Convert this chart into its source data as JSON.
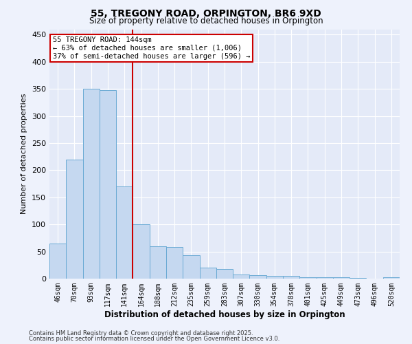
{
  "title_line1": "55, TREGONY ROAD, ORPINGTON, BR6 9XD",
  "title_line2": "Size of property relative to detached houses in Orpington",
  "xlabel": "Distribution of detached houses by size in Orpington",
  "ylabel": "Number of detached properties",
  "categories": [
    "46sqm",
    "70sqm",
    "93sqm",
    "117sqm",
    "141sqm",
    "164sqm",
    "188sqm",
    "212sqm",
    "235sqm",
    "259sqm",
    "283sqm",
    "307sqm",
    "330sqm",
    "354sqm",
    "378sqm",
    "401sqm",
    "425sqm",
    "449sqm",
    "473sqm",
    "496sqm",
    "520sqm"
  ],
  "values": [
    65,
    220,
    350,
    348,
    170,
    100,
    60,
    58,
    43,
    20,
    18,
    8,
    6,
    5,
    5,
    3,
    2,
    3,
    1,
    0,
    3
  ],
  "bar_color": "#c5d8f0",
  "bar_edge_color": "#6aaad4",
  "red_line_index": 4,
  "annotation_text_line1": "55 TREGONY ROAD: 144sqm",
  "annotation_text_line2": "← 63% of detached houses are smaller (1,006)",
  "annotation_text_line3": "37% of semi-detached houses are larger (596) →",
  "annotation_box_facecolor": "#ffffff",
  "annotation_box_edgecolor": "#cc0000",
  "red_line_color": "#cc0000",
  "ylim": [
    0,
    460
  ],
  "yticks": [
    0,
    50,
    100,
    150,
    200,
    250,
    300,
    350,
    400,
    450
  ],
  "footnote1": "Contains HM Land Registry data © Crown copyright and database right 2025.",
  "footnote2": "Contains public sector information licensed under the Open Government Licence v3.0.",
  "fig_bg_color": "#eef2fc",
  "plot_bg_color": "#e4eaf8",
  "grid_color": "#ffffff",
  "title1_fontsize": 10,
  "title2_fontsize": 8.5,
  "ylabel_fontsize": 8,
  "xlabel_fontsize": 8.5,
  "tick_fontsize": 7,
  "footnote_fontsize": 6
}
